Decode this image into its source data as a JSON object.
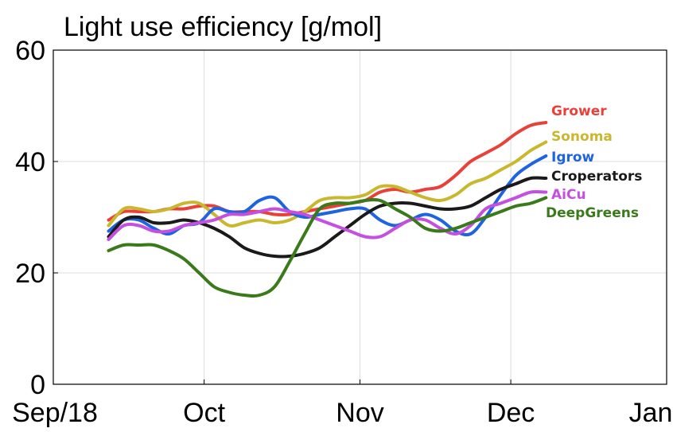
{
  "chart_data": {
    "type": "line",
    "title": "Light use efficiency [g/mol]",
    "xlabel": "",
    "ylabel": "",
    "x_type": "date",
    "xlim": [
      "2018-09-01",
      "2019-01-01"
    ],
    "ylim": [
      0,
      60
    ],
    "grid": true,
    "legend_placement": "right",
    "x_ticks": [
      {
        "date": "2018-09-01",
        "label": "Sep/18"
      },
      {
        "date": "2018-10-01",
        "label": "Oct"
      },
      {
        "date": "2018-11-01",
        "label": "Nov"
      },
      {
        "date": "2018-12-01",
        "label": "Dec"
      },
      {
        "date": "2019-01-01",
        "label": "Jan"
      }
    ],
    "y_ticks": [
      {
        "value": 0,
        "label": "0"
      },
      {
        "value": 20,
        "label": "20"
      },
      {
        "value": 40,
        "label": "40"
      },
      {
        "value": 60,
        "label": "60"
      }
    ],
    "x": [
      "2018-09-12",
      "2018-09-15",
      "2018-09-18",
      "2018-09-21",
      "2018-09-24",
      "2018-09-27",
      "2018-09-30",
      "2018-10-03",
      "2018-10-06",
      "2018-10-09",
      "2018-10-12",
      "2018-10-15",
      "2018-10-18",
      "2018-10-21",
      "2018-10-24",
      "2018-10-27",
      "2018-10-30",
      "2018-11-02",
      "2018-11-05",
      "2018-11-08",
      "2018-11-11",
      "2018-11-14",
      "2018-11-17",
      "2018-11-20",
      "2018-11-23",
      "2018-11-26",
      "2018-11-29",
      "2018-12-02",
      "2018-12-05",
      "2018-12-08"
    ],
    "series": [
      {
        "name": "Grower",
        "color": "#E8413A",
        "values": [
          29.5,
          31.0,
          31.0,
          31.0,
          31.5,
          31.5,
          32.0,
          32.0,
          31.0,
          31.0,
          31.0,
          30.5,
          30.5,
          31.0,
          31.5,
          32.0,
          32.5,
          33.0,
          34.5,
          35.0,
          34.5,
          35.0,
          35.5,
          37.5,
          40.0,
          41.5,
          43.0,
          45.0,
          46.5,
          47.0
        ]
      },
      {
        "name": "Sonoma",
        "color": "#C9B82E",
        "values": [
          28.5,
          31.5,
          31.5,
          31.0,
          31.5,
          32.5,
          32.5,
          30.5,
          28.5,
          29.0,
          29.5,
          29.0,
          29.5,
          31.0,
          33.0,
          33.5,
          33.5,
          34.0,
          35.5,
          35.5,
          34.5,
          33.5,
          33.0,
          34.0,
          36.0,
          37.0,
          38.5,
          40.0,
          42.0,
          43.5
        ]
      },
      {
        "name": "Igrow",
        "color": "#1E63E0",
        "values": [
          27.5,
          29.5,
          29.5,
          28.0,
          27.0,
          28.5,
          29.0,
          31.5,
          31.0,
          31.0,
          33.0,
          33.5,
          31.0,
          30.0,
          30.5,
          31.0,
          31.5,
          31.5,
          29.5,
          28.5,
          29.5,
          30.5,
          29.5,
          27.5,
          27.0,
          30.0,
          34.0,
          37.5,
          39.5,
          41.0
        ]
      },
      {
        "name": "Croperators",
        "color": "#1a1a1a",
        "values": [
          26.5,
          29.5,
          30.0,
          29.0,
          29.0,
          29.5,
          29.0,
          28.0,
          26.5,
          24.5,
          23.5,
          23.0,
          23.0,
          23.5,
          24.5,
          26.5,
          28.5,
          30.5,
          32.0,
          32.5,
          32.5,
          32.0,
          31.5,
          31.5,
          32.0,
          33.5,
          35.0,
          36.0,
          37.0,
          37.0
        ]
      },
      {
        "name": "AiCu",
        "color": "#C44FE0",
        "values": [
          26.0,
          28.5,
          28.5,
          27.5,
          27.5,
          28.5,
          29.0,
          29.5,
          30.5,
          30.5,
          31.0,
          31.5,
          31.0,
          30.5,
          29.5,
          28.5,
          27.5,
          26.5,
          26.5,
          28.0,
          29.5,
          29.5,
          28.0,
          27.0,
          28.5,
          31.5,
          32.5,
          33.5,
          34.5,
          34.5
        ]
      },
      {
        "name": "DeepGreens",
        "color": "#3A7A1A",
        "values": [
          24.0,
          25.0,
          25.0,
          25.0,
          24.0,
          22.5,
          20.0,
          17.5,
          16.5,
          16.0,
          16.0,
          17.5,
          22.0,
          27.0,
          31.5,
          32.5,
          32.5,
          33.0,
          33.0,
          31.5,
          30.0,
          28.0,
          27.5,
          28.0,
          29.0,
          30.0,
          31.0,
          32.0,
          32.5,
          33.5
        ]
      }
    ]
  }
}
